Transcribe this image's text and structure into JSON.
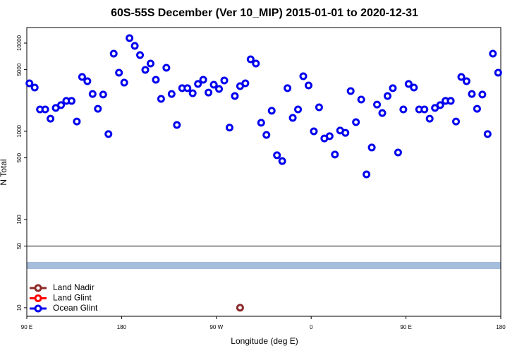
{
  "chart_data": {
    "type": "scatter",
    "title": "60S-55S December (Ver 10_MIP)   2015-01-01 to 2020-12-31",
    "xlabel": "Longitude (deg E)",
    "ylabel": "N Total",
    "xlim": [
      90,
      540
    ],
    "xticks": [
      {
        "value": 90,
        "label": "90 E"
      },
      180,
      {
        "value": 270,
        "label": "90 W"
      },
      {
        "value": 360,
        "label": "0"
      },
      {
        "value": 450,
        "label": "90 E"
      },
      180
    ],
    "ylim": [
      8,
      15000
    ],
    "ylog": true,
    "yticks": [
      10,
      50,
      100,
      500,
      1000,
      5000,
      10000
    ],
    "hline": 50,
    "legend": "lower left",
    "series": [
      {
        "name": "Land Nadir",
        "color": "#8b2a2a",
        "x": [
          292.5
        ],
        "values": [
          10
        ]
      },
      {
        "name": "Land Glint",
        "color": "#ff0000",
        "x": [],
        "values": []
      },
      {
        "name": "Ocean Glint",
        "color": "#0000ee",
        "x": [
          92.5,
          97.5,
          102.5,
          107.5,
          112.5,
          117.5,
          122.5,
          127.5,
          132.5,
          137.5,
          142.5,
          147.5,
          152.5,
          157.5,
          162.5,
          167.5,
          172.5,
          177.5,
          182.5,
          187.5,
          192.5,
          197.5,
          202.5,
          207.5,
          212.5,
          217.5,
          222.5,
          227.5,
          232.5,
          237.5,
          242.5,
          247.5,
          252.5,
          257.5,
          262.5,
          267.5,
          272.5,
          277.5,
          282.5,
          287.5,
          292.5,
          297.5,
          302.5,
          307.5,
          312.5,
          317.5,
          322.5,
          327.5,
          332.5,
          337.5,
          342.5,
          347.5,
          352.5,
          357.5,
          362.5,
          367.5,
          372.5,
          377.5,
          382.5,
          387.5,
          392.5,
          397.5,
          402.5,
          407.5,
          412.5,
          417.5,
          422.5,
          427.5,
          432.5,
          437.5,
          442.5,
          447.5,
          452.5,
          457.5,
          462.5,
          467.5,
          472.5,
          477.5,
          482.5,
          487.5,
          492.5,
          497.5,
          502.5,
          507.5,
          512.5,
          517.5,
          522.5,
          527.5,
          532.5,
          537.5
        ],
        "values": [
          3500,
          3130,
          1770,
          1770,
          1390,
          1840,
          1980,
          2210,
          2210,
          1290,
          4130,
          3700,
          2650,
          1800,
          2610,
          930,
          7590,
          4610,
          3560,
          11380,
          9290,
          7310,
          4970,
          5860,
          3840,
          2330,
          5250,
          2650,
          1180,
          3080,
          3080,
          2700,
          3440,
          3840,
          2750,
          3370,
          3020,
          3770,
          1100,
          2510,
          3250,
          3500,
          6550,
          5860,
          1250,
          910,
          1710,
          535,
          460,
          3080,
          1420,
          1770,
          4210,
          3310,
          1000,
          1870,
          830,
          880,
          545,
          1020,
          960,
          2860,
          1270,
          2290,
          325,
          655,
          2010,
          1610,
          2510,
          3080,
          575,
          1770,
          3440,
          3130,
          1770,
          1770,
          1390,
          1840,
          1980,
          2210,
          2210,
          1290,
          4130,
          3700,
          2650,
          1800,
          2610,
          930,
          7590,
          4610
        ]
      }
    ]
  }
}
